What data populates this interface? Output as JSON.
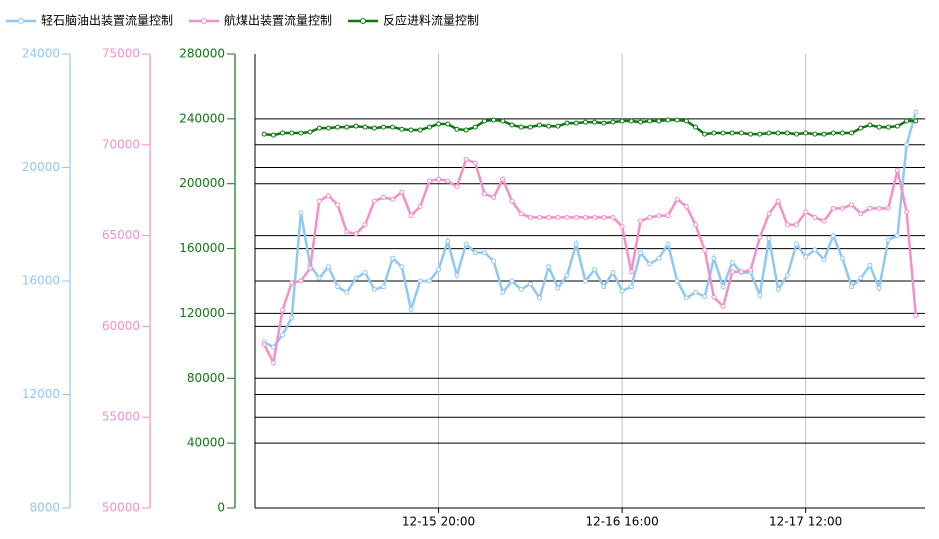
{
  "chart_data": {
    "type": "line",
    "x": [
      "12-15 01:00",
      "12-15 02:00",
      "12-15 03:00",
      "12-15 04:00",
      "12-15 05:00",
      "12-15 06:00",
      "12-15 07:00",
      "12-15 08:00",
      "12-15 09:00",
      "12-15 10:00",
      "12-15 11:00",
      "12-15 12:00",
      "12-15 13:00",
      "12-15 14:00",
      "12-15 15:00",
      "12-15 16:00",
      "12-15 17:00",
      "12-15 18:00",
      "12-15 19:00",
      "12-15 20:00",
      "12-15 21:00",
      "12-15 22:00",
      "12-15 23:00",
      "12-16 00:00",
      "12-16 01:00",
      "12-16 02:00",
      "12-16 03:00",
      "12-16 04:00",
      "12-16 05:00",
      "12-16 06:00",
      "12-16 07:00",
      "12-16 08:00",
      "12-16 09:00",
      "12-16 10:00",
      "12-16 11:00",
      "12-16 12:00",
      "12-16 13:00",
      "12-16 14:00",
      "12-16 15:00",
      "12-16 16:00",
      "12-16 17:00",
      "12-16 18:00",
      "12-16 19:00",
      "12-16 20:00",
      "12-16 21:00",
      "12-16 22:00",
      "12-16 23:00",
      "12-17 00:00",
      "12-17 01:00",
      "12-17 02:00",
      "12-17 03:00",
      "12-17 04:00",
      "12-17 05:00",
      "12-17 06:00",
      "12-17 07:00",
      "12-17 08:00",
      "12-17 09:00",
      "12-17 10:00",
      "12-17 11:00",
      "12-17 12:00",
      "12-17 13:00",
      "12-17 14:00",
      "12-17 15:00",
      "12-17 16:00",
      "12-17 17:00",
      "12-17 18:00",
      "12-17 19:00",
      "12-17 20:00",
      "12-17 21:00",
      "12-17 22:00",
      "12-17 23:00",
      "12-18 00:00"
    ],
    "xlim": [
      "12-15 00:00",
      "12-18 01:00"
    ],
    "xticks": [
      "12-15 20:00",
      "12-16 16:00",
      "12-17 12:00"
    ],
    "ylim": [
      0,
      280000
    ],
    "yticks": [
      0,
      40000,
      80000,
      120000,
      160000,
      200000,
      240000,
      280000
    ],
    "y2lim": [
      50000,
      75000
    ],
    "y2ticks": [
      50000,
      55000,
      60000,
      65000,
      70000,
      75000
    ],
    "y3lim": [
      8000,
      24000
    ],
    "y3ticks": [
      8000,
      12000,
      16000,
      20000,
      24000
    ],
    "grid": true,
    "series": [
      {
        "name": "轻石脑油出装置流量控制",
        "color": "#90c8f4",
        "axis": "y3",
        "values": [
          13850,
          13670,
          14100,
          14700,
          18400,
          16560,
          16100,
          16500,
          15800,
          15600,
          16100,
          16300,
          15700,
          15800,
          16800,
          16500,
          15000,
          16000,
          16000,
          16400,
          17400,
          16200,
          17300,
          17000,
          17000,
          16700,
          15600,
          16000,
          15700,
          15900,
          15400,
          16500,
          15750,
          16200,
          17300,
          16000,
          16400,
          15800,
          16300,
          15650,
          15800,
          17000,
          16600,
          16800,
          17300,
          16000,
          15400,
          15600,
          15450,
          16800,
          15800,
          16650,
          16300,
          16300,
          15500,
          17500,
          15700,
          16200,
          17300,
          16850,
          17100,
          16750,
          17600,
          16800,
          15800,
          16100,
          16550,
          15750,
          17450,
          17600,
          20800,
          21950
        ]
      },
      {
        "name": "航煤出装置流量控制",
        "color": "#f490c8",
        "axis": "y2",
        "values": [
          59000,
          58000,
          60900,
          62400,
          62500,
          63200,
          66900,
          67200,
          66700,
          65200,
          65100,
          65600,
          66900,
          67100,
          67000,
          67400,
          66100,
          66600,
          68000,
          68100,
          68000,
          67700,
          69200,
          69000,
          67300,
          67100,
          68100,
          66900,
          66200,
          66000,
          66000,
          66000,
          66000,
          66000,
          66000,
          66000,
          66000,
          66000,
          66000,
          65500,
          63000,
          65800,
          66000,
          66100,
          66100,
          67000,
          66600,
          65600,
          64200,
          61600,
          61100,
          63000,
          63000,
          63100,
          64900,
          66200,
          66900,
          65600,
          65600,
          66300,
          66000,
          65800,
          66500,
          66500,
          66700,
          66200,
          66500,
          66500,
          66500,
          68600,
          66300,
          60600
        ]
      },
      {
        "name": "反应进料流量控制",
        "color": "#107810",
        "axis": "y",
        "values": [
          230600,
          230000,
          231300,
          231300,
          231300,
          231900,
          234300,
          234300,
          234900,
          234900,
          235500,
          234900,
          234300,
          234900,
          234900,
          233600,
          233100,
          233100,
          234900,
          236800,
          236800,
          233600,
          233100,
          234900,
          238700,
          239300,
          238700,
          236200,
          234900,
          234900,
          236200,
          235500,
          235500,
          237400,
          237400,
          238000,
          238000,
          237400,
          238000,
          238700,
          238700,
          238000,
          238700,
          238700,
          239300,
          239300,
          238700,
          234900,
          230600,
          231300,
          231300,
          231300,
          231300,
          230600,
          230600,
          231300,
          231300,
          231300,
          230600,
          231300,
          230600,
          230600,
          231300,
          231300,
          231300,
          234300,
          236200,
          234900,
          234900,
          235500,
          238700,
          238700
        ]
      }
    ]
  }
}
